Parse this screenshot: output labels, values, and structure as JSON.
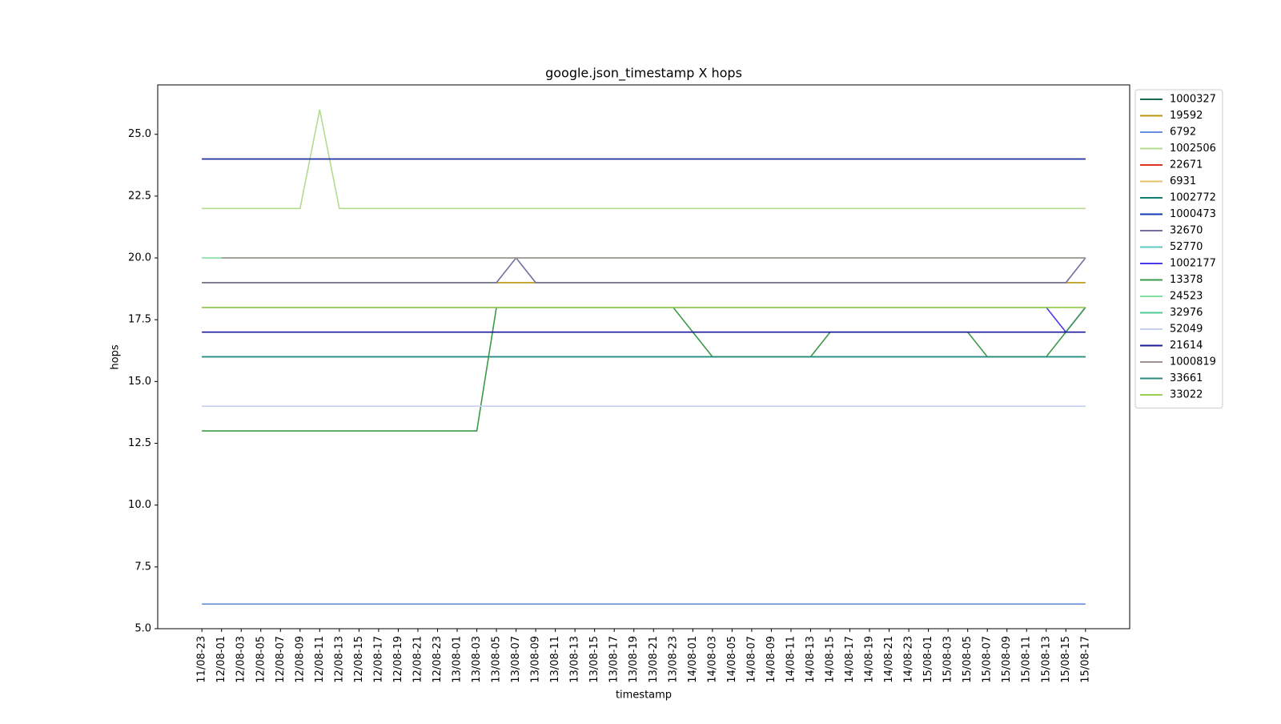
{
  "chart_data": {
    "type": "line",
    "title": "google.json_timestamp X hops",
    "x_label": "timestamp",
    "y_label": "hops",
    "categories": [
      "11/08-23",
      "12/08-01",
      "12/08-03",
      "12/08-05",
      "12/08-07",
      "12/08-09",
      "12/08-11",
      "12/08-13",
      "12/08-15",
      "12/08-17",
      "12/08-19",
      "12/08-21",
      "12/08-23",
      "13/08-01",
      "13/08-03",
      "13/08-05",
      "13/08-07",
      "13/08-09",
      "13/08-11",
      "13/08-13",
      "13/08-15",
      "13/08-17",
      "13/08-19",
      "13/08-21",
      "13/08-23",
      "14/08-01",
      "14/08-03",
      "14/08-05",
      "14/08-07",
      "14/08-09",
      "14/08-11",
      "14/08-13",
      "14/08-15",
      "14/08-17",
      "14/08-19",
      "14/08-21",
      "14/08-23",
      "15/08-01",
      "15/08-03",
      "15/08-05",
      "15/08-07",
      "15/08-09",
      "15/08-11",
      "15/08-13",
      "15/08-15",
      "15/08-17"
    ],
    "ylim": [
      5,
      27
    ],
    "yticks": [
      {
        "value": 5,
        "label": "5.0"
      },
      {
        "value": 7.5,
        "label": "7.5"
      },
      {
        "value": 10,
        "label": "10.0"
      },
      {
        "value": 12.5,
        "label": "12.5"
      },
      {
        "value": 15,
        "label": "15.0"
      },
      {
        "value": 17.5,
        "label": "17.5"
      },
      {
        "value": 20,
        "label": "20.0"
      },
      {
        "value": 22.5,
        "label": "22.5"
      },
      {
        "value": 25,
        "label": "25.0"
      }
    ],
    "grid": false,
    "legend": "outside right",
    "series": [
      {
        "name": "1000327",
        "color": "#1e6b52",
        "values": [
          16,
          16,
          16,
          16,
          16,
          16,
          16,
          16,
          16,
          16,
          16,
          16,
          16,
          16,
          16,
          16,
          16,
          16,
          16,
          16,
          16,
          16,
          16,
          16,
          16,
          16,
          16,
          16,
          16,
          16,
          16,
          16,
          16,
          16,
          16,
          16,
          16,
          16,
          16,
          16,
          16,
          16,
          16,
          16,
          16,
          16
        ]
      },
      {
        "name": "19592",
        "color": "#b8960b",
        "values": [
          19,
          19,
          19,
          19,
          19,
          19,
          19,
          19,
          19,
          19,
          19,
          19,
          19,
          19,
          19,
          19,
          19,
          19,
          19,
          19,
          19,
          19,
          19,
          19,
          19,
          19,
          19,
          19,
          19,
          19,
          19,
          19,
          19,
          19,
          19,
          19,
          19,
          19,
          19,
          19,
          19,
          19,
          19,
          19,
          19,
          19
        ]
      },
      {
        "name": "6792",
        "color": "#6a8fe0",
        "values": [
          6,
          6,
          6,
          6,
          6,
          6,
          6,
          6,
          6,
          6,
          6,
          6,
          6,
          6,
          6,
          6,
          6,
          6,
          6,
          6,
          6,
          6,
          6,
          6,
          6,
          6,
          6,
          6,
          6,
          6,
          6,
          6,
          6,
          6,
          6,
          6,
          6,
          6,
          6,
          6,
          6,
          6,
          6,
          6,
          6,
          6
        ]
      },
      {
        "name": "1002506",
        "color": "#b3dc8c",
        "values": [
          22,
          22,
          22,
          22,
          22,
          22,
          26,
          22,
          22,
          22,
          22,
          22,
          22,
          22,
          22,
          22,
          22,
          22,
          22,
          22,
          22,
          22,
          22,
          22,
          22,
          22,
          22,
          22,
          22,
          22,
          22,
          22,
          22,
          22,
          22,
          22,
          22,
          22,
          22,
          22,
          22,
          22,
          22,
          22,
          22,
          22
        ]
      },
      {
        "name": "22671",
        "color": "#e0301e",
        "values": [
          24,
          24,
          24,
          24,
          24,
          24,
          24,
          24,
          24,
          24,
          24,
          24,
          24,
          24,
          24,
          24,
          24,
          24,
          24,
          24,
          24,
          24,
          24,
          24,
          24,
          24,
          24,
          24,
          24,
          24,
          24,
          24,
          24,
          24,
          24,
          24,
          24,
          24,
          24,
          24,
          24,
          24,
          24,
          24,
          24,
          24
        ]
      },
      {
        "name": "6931",
        "color": "#e8c070",
        "values": [
          18,
          18,
          18,
          18,
          18,
          18,
          18,
          18,
          18,
          18,
          18,
          18,
          18,
          18,
          18,
          18,
          18,
          18,
          18,
          18,
          18,
          18,
          18,
          18,
          18,
          18,
          18,
          18,
          18,
          18,
          18,
          18,
          18,
          18,
          18,
          18,
          18,
          18,
          18,
          18,
          18,
          18,
          18,
          18,
          18,
          18
        ]
      },
      {
        "name": "1002772",
        "color": "#108070",
        "values": [
          16,
          16,
          16,
          16,
          16,
          16,
          16,
          16,
          16,
          16,
          16,
          16,
          16,
          16,
          16,
          16,
          16,
          16,
          16,
          16,
          16,
          16,
          16,
          16,
          16,
          16,
          16,
          16,
          16,
          16,
          16,
          16,
          16,
          16,
          16,
          16,
          16,
          16,
          16,
          16,
          16,
          16,
          16,
          16,
          16,
          16
        ]
      },
      {
        "name": "1000473",
        "color": "#1038b0",
        "values": [
          24,
          24,
          24,
          24,
          24,
          24,
          24,
          24,
          24,
          24,
          24,
          24,
          24,
          24,
          24,
          24,
          24,
          24,
          24,
          24,
          24,
          24,
          24,
          24,
          24,
          24,
          24,
          24,
          24,
          24,
          24,
          24,
          24,
          24,
          24,
          24,
          24,
          24,
          24,
          24,
          24,
          24,
          24,
          24,
          24,
          24
        ]
      },
      {
        "name": "32670",
        "color": "#7070a0",
        "values": [
          19,
          19,
          19,
          19,
          19,
          19,
          19,
          19,
          19,
          19,
          19,
          19,
          19,
          19,
          19,
          19,
          20,
          19,
          19,
          19,
          19,
          19,
          19,
          19,
          19,
          19,
          19,
          19,
          19,
          19,
          19,
          19,
          19,
          19,
          19,
          19,
          19,
          19,
          19,
          19,
          19,
          19,
          19,
          19,
          19,
          20
        ]
      },
      {
        "name": "52770",
        "color": "#60c8c0",
        "values": [
          16,
          16,
          16,
          16,
          16,
          16,
          16,
          16,
          16,
          16,
          16,
          16,
          16,
          16,
          16,
          16,
          16,
          16,
          16,
          16,
          16,
          16,
          16,
          16,
          16,
          16,
          16,
          16,
          16,
          16,
          16,
          16,
          16,
          16,
          16,
          16,
          16,
          16,
          16,
          16,
          16,
          16,
          16,
          16,
          16,
          16
        ]
      },
      {
        "name": "1002177",
        "color": "#4a3ae8",
        "values": [
          18,
          18,
          18,
          18,
          18,
          18,
          18,
          18,
          18,
          18,
          18,
          18,
          18,
          18,
          18,
          18,
          18,
          18,
          18,
          18,
          18,
          18,
          18,
          18,
          18,
          18,
          18,
          18,
          18,
          18,
          18,
          18,
          18,
          18,
          18,
          18,
          18,
          18,
          18,
          18,
          18,
          18,
          18,
          18,
          17,
          18
        ]
      },
      {
        "name": "13378",
        "color": "#3a9a48",
        "values": [
          13,
          13,
          13,
          13,
          13,
          13,
          13,
          13,
          13,
          13,
          13,
          13,
          13,
          13,
          13,
          18,
          18,
          18,
          18,
          18,
          18,
          18,
          18,
          18,
          18,
          17,
          16,
          16,
          16,
          16,
          16,
          16,
          17,
          17,
          17,
          17,
          17,
          17,
          17,
          17,
          16,
          16,
          16,
          16,
          17,
          18
        ]
      },
      {
        "name": "24523",
        "color": "#80e0a0",
        "values": [
          20,
          20,
          20,
          20,
          20,
          20,
          20,
          20,
          20,
          20,
          20,
          20,
          20,
          20,
          20,
          20,
          20,
          20,
          20,
          20,
          20,
          20,
          20,
          20,
          20,
          20,
          20,
          20,
          20,
          20,
          20,
          20,
          20,
          20,
          20,
          20,
          20,
          20,
          20,
          20,
          20,
          20,
          20,
          20,
          20,
          20
        ]
      },
      {
        "name": "32976",
        "color": "#50c890",
        "values": [
          18,
          18,
          18,
          18,
          18,
          18,
          18,
          18,
          18,
          18,
          18,
          18,
          18,
          18,
          18,
          18,
          18,
          18,
          18,
          18,
          18,
          18,
          18,
          18,
          18,
          18,
          18,
          18,
          18,
          18,
          18,
          18,
          18,
          18,
          18,
          18,
          18,
          18,
          18,
          18,
          18,
          18,
          18,
          18,
          18,
          18
        ]
      },
      {
        "name": "52049",
        "color": "#c8d0f0",
        "values": [
          14,
          14,
          14,
          14,
          14,
          14,
          14,
          14,
          14,
          14,
          14,
          14,
          14,
          14,
          14,
          14,
          14,
          14,
          14,
          14,
          14,
          14,
          14,
          14,
          14,
          14,
          14,
          14,
          14,
          14,
          14,
          14,
          14,
          14,
          14,
          14,
          14,
          14,
          14,
          14,
          14,
          14,
          14,
          14,
          14,
          14
        ]
      },
      {
        "name": "21614",
        "color": "#1a1a9a",
        "values": [
          17,
          17,
          17,
          17,
          17,
          17,
          17,
          17,
          17,
          17,
          17,
          17,
          17,
          17,
          17,
          17,
          17,
          17,
          17,
          17,
          17,
          17,
          17,
          17,
          17,
          17,
          17,
          17,
          17,
          17,
          17,
          17,
          17,
          17,
          17,
          17,
          17,
          17,
          17,
          17,
          17,
          17,
          17,
          17,
          17,
          17
        ]
      },
      {
        "name": "1000819",
        "color": "#a09090",
        "values": [
          null,
          20,
          20,
          20,
          20,
          20,
          20,
          20,
          20,
          20,
          20,
          20,
          20,
          20,
          20,
          20,
          20,
          20,
          20,
          20,
          20,
          20,
          20,
          20,
          20,
          20,
          20,
          20,
          20,
          20,
          20,
          20,
          20,
          20,
          20,
          20,
          20,
          20,
          20,
          20,
          20,
          20,
          20,
          20,
          20,
          20
        ]
      },
      {
        "name": "33661",
        "color": "#2a8a80",
        "values": [
          16,
          16,
          16,
          16,
          16,
          16,
          16,
          16,
          16,
          16,
          16,
          16,
          16,
          16,
          16,
          16,
          16,
          16,
          16,
          16,
          16,
          16,
          16,
          16,
          16,
          16,
          16,
          16,
          16,
          16,
          16,
          16,
          16,
          16,
          16,
          16,
          16,
          16,
          16,
          16,
          16,
          16,
          16,
          16,
          16,
          16
        ]
      },
      {
        "name": "33022",
        "color": "#9ad050",
        "values": [
          18,
          18,
          18,
          18,
          18,
          18,
          18,
          18,
          18,
          18,
          18,
          18,
          18,
          18,
          18,
          18,
          18,
          18,
          18,
          18,
          18,
          18,
          18,
          18,
          18,
          18,
          18,
          18,
          18,
          18,
          18,
          18,
          18,
          18,
          18,
          18,
          18,
          18,
          18,
          18,
          18,
          18,
          18,
          18,
          18,
          18
        ]
      }
    ]
  }
}
